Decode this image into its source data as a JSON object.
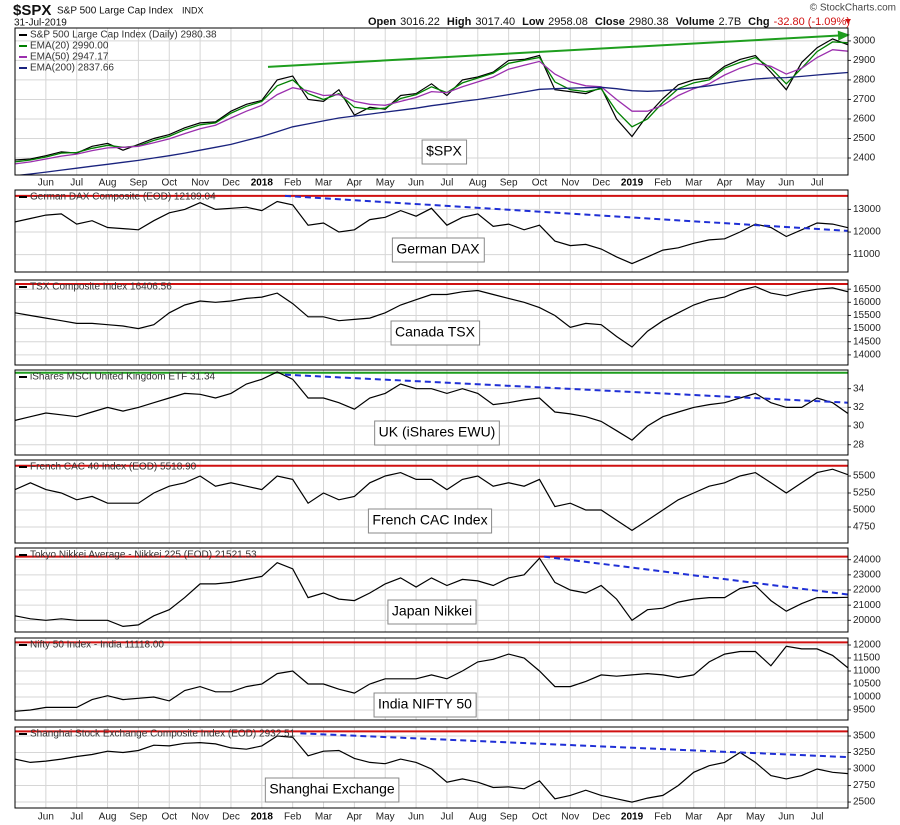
{
  "header": {
    "symbol": "$SPX",
    "name": "S&P 500 Large Cap Index",
    "exchange": "INDX",
    "date": "31-Jul-2019",
    "credit": "© StockCharts.com",
    "quote": [
      {
        "label": "Open",
        "value": "3016.22"
      },
      {
        "label": "High",
        "value": "3017.40"
      },
      {
        "label": "Low",
        "value": "2958.08"
      },
      {
        "label": "Close",
        "value": "2980.38"
      },
      {
        "label": "Volume",
        "value": "2.7B"
      },
      {
        "label": "Chg",
        "value": "-32.80 (-1.09%)"
      }
    ]
  },
  "chart_data": [
    {
      "type": "line",
      "label": "$SPX",
      "categories": [
        null,
        null,
        "Jun",
        null,
        "Jul",
        null,
        "Aug",
        null,
        "Sep",
        null,
        "Oct",
        null,
        "Nov",
        null,
        "Dec",
        null,
        "2018",
        null,
        "Feb",
        null,
        "Mar",
        null,
        "Apr",
        null,
        "May",
        null,
        "Jun",
        null,
        "Jul",
        null,
        "Aug",
        null,
        "Sep",
        null,
        "Oct",
        null,
        "Nov",
        null,
        "Dec",
        null,
        "2019",
        null,
        "Feb",
        null,
        "Mar",
        null,
        "Apr",
        null,
        "May",
        null,
        "Jun",
        null,
        "Jul",
        null,
        null
      ],
      "series": [
        {
          "name": "S&P 500 Large Cap Index (Daily) 2980.38",
          "color": "#000000",
          "values": [
            2390,
            2395,
            2412,
            2432,
            2425,
            2460,
            2475,
            2440,
            2470,
            2500,
            2520,
            2555,
            2580,
            2585,
            2640,
            2675,
            2695,
            2800,
            2820,
            2700,
            2690,
            2750,
            2620,
            2660,
            2650,
            2720,
            2730,
            2780,
            2720,
            2800,
            2815,
            2840,
            2900,
            2905,
            2925,
            2750,
            2740,
            2730,
            2760,
            2600,
            2510,
            2620,
            2705,
            2775,
            2800,
            2810,
            2870,
            2905,
            2925,
            2840,
            2750,
            2890,
            2965,
            3010,
            2980
          ]
        },
        {
          "name": "EMA(20) 2990.00",
          "color": "#008000",
          "values": [
            2380,
            2390,
            2405,
            2425,
            2428,
            2450,
            2465,
            2455,
            2462,
            2490,
            2512,
            2545,
            2570,
            2580,
            2630,
            2665,
            2690,
            2770,
            2800,
            2730,
            2700,
            2730,
            2660,
            2650,
            2655,
            2705,
            2725,
            2765,
            2735,
            2785,
            2810,
            2835,
            2885,
            2900,
            2915,
            2790,
            2750,
            2740,
            2755,
            2640,
            2560,
            2600,
            2685,
            2755,
            2785,
            2800,
            2860,
            2890,
            2915,
            2860,
            2780,
            2860,
            2945,
            2995,
            2990
          ]
        },
        {
          "name": "EMA(50) 2947.17",
          "color": "#9b2fae",
          "values": [
            2370,
            2380,
            2395,
            2410,
            2420,
            2438,
            2452,
            2455,
            2460,
            2478,
            2498,
            2525,
            2550,
            2568,
            2605,
            2640,
            2670,
            2725,
            2760,
            2745,
            2720,
            2725,
            2690,
            2675,
            2670,
            2690,
            2710,
            2740,
            2735,
            2765,
            2790,
            2815,
            2855,
            2875,
            2895,
            2830,
            2790,
            2770,
            2765,
            2700,
            2640,
            2640,
            2670,
            2720,
            2755,
            2780,
            2825,
            2860,
            2885,
            2870,
            2830,
            2860,
            2915,
            2955,
            2947
          ]
        },
        {
          "name": "EMA(200) 2837.66",
          "color": "#1a237e",
          "values": [
            2310,
            2318,
            2328,
            2338,
            2348,
            2358,
            2368,
            2378,
            2388,
            2400,
            2412,
            2425,
            2440,
            2455,
            2470,
            2490,
            2510,
            2535,
            2560,
            2575,
            2590,
            2605,
            2615,
            2625,
            2635,
            2645,
            2655,
            2668,
            2678,
            2690,
            2700,
            2712,
            2725,
            2738,
            2752,
            2755,
            2758,
            2760,
            2762,
            2755,
            2745,
            2742,
            2745,
            2752,
            2760,
            2770,
            2782,
            2795,
            2805,
            2810,
            2812,
            2818,
            2825,
            2832,
            2838
          ]
        }
      ],
      "ylim": [
        2313,
        3066
      ],
      "yticks": [
        2400,
        2500,
        2600,
        2700,
        2800,
        2900,
        3000
      ],
      "grid": true,
      "trendline": {
        "x": [
          16.4,
          54
        ],
        "y": [
          2867,
          3030
        ],
        "color": "#1e9e1e",
        "dashed": false,
        "arrow": true
      }
    },
    {
      "type": "line",
      "label": "German DAX",
      "series": [
        {
          "name": "German DAX Composite (EOD) 12189.04",
          "color": "#000000",
          "values": [
            12450,
            12600,
            12750,
            12800,
            12350,
            12500,
            12200,
            12150,
            12100,
            12500,
            12850,
            13000,
            13300,
            13000,
            13050,
            13100,
            12950,
            13350,
            13200,
            12300,
            12400,
            12000,
            12100,
            12550,
            12650,
            12950,
            12700,
            13050,
            12300,
            12650,
            12800,
            12250,
            12350,
            12100,
            12300,
            11600,
            11400,
            11450,
            11250,
            10900,
            10600,
            10900,
            11200,
            11300,
            11500,
            11650,
            11700,
            12000,
            12350,
            12200,
            11800,
            12100,
            12400,
            12350,
            12190
          ]
        }
      ],
      "ylim": [
        10230,
        13860
      ],
      "yticks": [
        11000,
        12000,
        13000
      ],
      "grid": true,
      "hline": {
        "value": 13600,
        "color": "#d01010"
      },
      "trendline": {
        "x": [
          17.5,
          54
        ],
        "y": [
          13600,
          12050
        ],
        "color": "#1f2fd6",
        "dashed": true,
        "arrow": false
      }
    },
    {
      "type": "line",
      "label": "Canada TSX",
      "series": [
        {
          "name": "TSX Composite Index 16406.56",
          "color": "#000000",
          "values": [
            15600,
            15500,
            15400,
            15300,
            15200,
            15200,
            15150,
            15100,
            15000,
            15150,
            15600,
            15900,
            16050,
            16000,
            16050,
            16150,
            16200,
            16350,
            15950,
            15450,
            15450,
            15300,
            15350,
            15400,
            15600,
            15900,
            16100,
            16300,
            16300,
            16400,
            16450,
            16300,
            16150,
            16000,
            15800,
            15500,
            15050,
            15200,
            15150,
            14700,
            14300,
            14900,
            15300,
            15600,
            15900,
            16100,
            16200,
            16450,
            16600,
            16350,
            16250,
            16400,
            16500,
            16550,
            16400
          ]
        }
      ],
      "ylim": [
        13615,
        16850
      ],
      "yticks": [
        14000,
        14500,
        15000,
        15500,
        16000,
        16500
      ],
      "grid": true,
      "hline": {
        "value": 16700,
        "color": "#d01010"
      }
    },
    {
      "type": "line",
      "label": "UK (iShares EWU)",
      "series": [
        {
          "name": "iShares MSCI United Kingdom ETF 31.34",
          "color": "#000000",
          "values": [
            30.6,
            31.0,
            31.4,
            31.2,
            31.0,
            31.5,
            32.0,
            31.6,
            32.0,
            32.5,
            33.0,
            33.5,
            33.4,
            33.0,
            33.5,
            34.5,
            35.0,
            35.8,
            35.0,
            33.0,
            33.0,
            32.5,
            31.8,
            33.0,
            33.5,
            34.5,
            34.0,
            34.0,
            33.5,
            34.0,
            33.5,
            32.3,
            32.5,
            32.8,
            33.0,
            31.5,
            31.3,
            31.0,
            30.5,
            29.5,
            28.5,
            30.0,
            31.0,
            31.5,
            32.0,
            32.3,
            32.5,
            33.0,
            33.5,
            32.5,
            32.0,
            32.0,
            33.0,
            32.5,
            31.34
          ]
        }
      ],
      "ylim": [
        26.9,
        36
      ],
      "yticks": [
        28,
        30,
        32,
        34
      ],
      "grid": true,
      "hline": {
        "value": 35.7,
        "color": "#1e9e1e"
      },
      "trendline": {
        "x": [
          17.5,
          54
        ],
        "y": [
          35.5,
          32.5
        ],
        "color": "#1f2fd6",
        "dashed": true,
        "arrow": false
      }
    },
    {
      "type": "line",
      "label": "French CAC Index",
      "series": [
        {
          "name": "French CAC 40 Index (EOD) 5518.90",
          "color": "#000000",
          "values": [
            5300,
            5400,
            5300,
            5250,
            5150,
            5200,
            5100,
            5100,
            5100,
            5250,
            5350,
            5400,
            5500,
            5350,
            5400,
            5350,
            5300,
            5500,
            5450,
            5100,
            5250,
            5150,
            5200,
            5400,
            5500,
            5550,
            5450,
            5450,
            5300,
            5450,
            5500,
            5350,
            5400,
            5350,
            5450,
            5050,
            5100,
            5000,
            5000,
            4850,
            4700,
            4850,
            5000,
            5150,
            5250,
            5350,
            5400,
            5500,
            5550,
            5400,
            5250,
            5400,
            5550,
            5600,
            5519
          ]
        }
      ],
      "ylim": [
        4515,
        5735
      ],
      "yticks": [
        4750,
        5000,
        5250,
        5500
      ],
      "grid": true,
      "hline": {
        "value": 5650,
        "color": "#d01010"
      }
    },
    {
      "type": "line",
      "label": "Japan Nikkei",
      "series": [
        {
          "name": "Tokyo Nikkei Average - Nikkei 225 (EOD) 21521.53",
          "color": "#000000",
          "values": [
            20300,
            20100,
            20000,
            20100,
            20000,
            20000,
            20000,
            19600,
            19700,
            20300,
            20700,
            21500,
            22400,
            22400,
            22500,
            22700,
            22900,
            23800,
            23400,
            21500,
            21800,
            21400,
            21300,
            21800,
            22400,
            22800,
            22200,
            22800,
            22300,
            22700,
            22600,
            22300,
            22800,
            23000,
            24100,
            22500,
            22000,
            21800,
            22300,
            21400,
            20000,
            20700,
            20800,
            21200,
            21400,
            21500,
            21500,
            22100,
            22300,
            21300,
            20600,
            21100,
            21500,
            21500,
            21520
          ]
        }
      ],
      "ylim": [
        19230,
        24770
      ],
      "yticks": [
        20000,
        21000,
        22000,
        23000,
        24000
      ],
      "grid": true,
      "hline": {
        "value": 24200,
        "color": "#d01010"
      },
      "trendline": {
        "x": [
          34.3,
          54
        ],
        "y": [
          24200,
          21700
        ],
        "color": "#1f2fd6",
        "dashed": true,
        "arrow": false
      }
    },
    {
      "type": "line",
      "label": "India NIFTY 50",
      "series": [
        {
          "name": "Nifty 50 Index - India 11118.00",
          "color": "#000000",
          "values": [
            9450,
            9500,
            9600,
            9600,
            9600,
            9900,
            10050,
            9900,
            9950,
            10000,
            9850,
            10250,
            10400,
            10200,
            10200,
            10400,
            10500,
            10900,
            11000,
            10500,
            10500,
            10300,
            10150,
            10500,
            10700,
            10700,
            10700,
            10850,
            10700,
            11000,
            11350,
            11450,
            11650,
            11500,
            11000,
            10400,
            10400,
            10600,
            10850,
            10800,
            10850,
            10900,
            10850,
            10750,
            10850,
            11350,
            11650,
            11750,
            11750,
            11200,
            11950,
            11850,
            11850,
            11600,
            11118
          ]
        }
      ],
      "ylim": [
        9115,
        12270
      ],
      "yticks": [
        9500,
        10000,
        10500,
        11000,
        11500,
        12000
      ],
      "grid": true,
      "hline": {
        "value": 12100,
        "color": "#d01010"
      }
    },
    {
      "type": "line",
      "label": "Shanghai Exchange",
      "categories": [
        null,
        null,
        "Jun",
        null,
        "Jul",
        null,
        "Aug",
        null,
        "Sep",
        null,
        "Oct",
        null,
        "Nov",
        null,
        "Dec",
        null,
        "2018",
        null,
        "Feb",
        null,
        "Mar",
        null,
        "Apr",
        null,
        "May",
        null,
        "Jun",
        null,
        "Jul",
        null,
        "Aug",
        null,
        "Sep",
        null,
        "Oct",
        null,
        "Nov",
        null,
        "Dec",
        null,
        "2019",
        null,
        "Feb",
        null,
        "Mar",
        null,
        "Apr",
        null,
        "May",
        null,
        "Jun",
        null,
        "Jul",
        null,
        null
      ],
      "series": [
        {
          "name": "Shanghai Stock Exchange Composite Index (EOD) 2932.51",
          "color": "#000000",
          "values": [
            3150,
            3100,
            3120,
            3150,
            3190,
            3220,
            3270,
            3250,
            3280,
            3360,
            3350,
            3390,
            3400,
            3380,
            3320,
            3300,
            3350,
            3500,
            3480,
            3200,
            3270,
            3280,
            3160,
            3100,
            3080,
            3150,
            3100,
            3000,
            2800,
            2850,
            2800,
            2720,
            2730,
            2700,
            2820,
            2550,
            2600,
            2680,
            2600,
            2550,
            2500,
            2560,
            2600,
            2750,
            2950,
            3050,
            3100,
            3250,
            3100,
            2900,
            2850,
            2900,
            3000,
            2950,
            2930
          ]
        }
      ],
      "ylim": [
        2410,
        3636
      ],
      "yticks": [
        2500,
        2750,
        3000,
        3250,
        3500
      ],
      "grid": true,
      "hline": {
        "value": 3570,
        "color": "#d01010"
      },
      "trendline": {
        "x": [
          18.5,
          54
        ],
        "y": [
          3540,
          3180
        ],
        "color": "#1f2fd6",
        "dashed": true,
        "arrow": false
      }
    }
  ]
}
